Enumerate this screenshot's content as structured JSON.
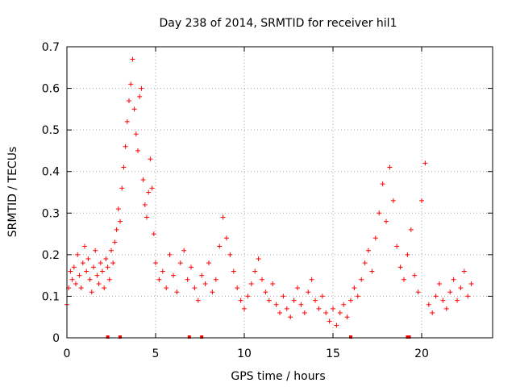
{
  "chart_data": {
    "type": "scatter",
    "title": "Day 238 of 2014, SRMTID for receiver hil1",
    "xlabel": "GPS time / hours",
    "ylabel": "SRMTID / TECUs",
    "xlim": [
      0,
      24
    ],
    "ylim": [
      0,
      0.7
    ],
    "xticks": [
      0,
      5,
      10,
      15,
      20
    ],
    "xtick_labels": [
      "0",
      "5",
      "10",
      "15",
      "20"
    ],
    "yticks": [
      0,
      0.1,
      0.2,
      0.3,
      0.4,
      0.5,
      0.6,
      0.7
    ],
    "ytick_labels": [
      "0",
      "0.1",
      "0.2",
      "0.3",
      "0.4",
      "0.5",
      "0.6",
      "0.7"
    ],
    "grid": true,
    "marker": "+",
    "color": "#ff0000",
    "series": [
      {
        "name": "hil1",
        "points": [
          [
            0.0,
            0.08
          ],
          [
            0.1,
            0.12
          ],
          [
            0.2,
            0.16
          ],
          [
            0.3,
            0.14
          ],
          [
            0.4,
            0.17
          ],
          [
            0.5,
            0.13
          ],
          [
            0.6,
            0.2
          ],
          [
            0.7,
            0.15
          ],
          [
            0.8,
            0.12
          ],
          [
            0.9,
            0.18
          ],
          [
            1.0,
            0.22
          ],
          [
            1.1,
            0.16
          ],
          [
            1.2,
            0.19
          ],
          [
            1.3,
            0.14
          ],
          [
            1.4,
            0.11
          ],
          [
            1.5,
            0.17
          ],
          [
            1.6,
            0.21
          ],
          [
            1.7,
            0.15
          ],
          [
            1.8,
            0.13
          ],
          [
            1.9,
            0.18
          ],
          [
            2.0,
            0.16
          ],
          [
            2.1,
            0.12
          ],
          [
            2.2,
            0.19
          ],
          [
            2.3,
            0.17
          ],
          [
            2.4,
            0.14
          ],
          [
            2.5,
            0.21
          ],
          [
            2.6,
            0.18
          ],
          [
            2.7,
            0.23
          ],
          [
            2.8,
            0.26
          ],
          [
            2.9,
            0.31
          ],
          [
            3.0,
            0.28
          ],
          [
            3.1,
            0.36
          ],
          [
            3.2,
            0.41
          ],
          [
            3.3,
            0.46
          ],
          [
            3.4,
            0.52
          ],
          [
            3.5,
            0.57
          ],
          [
            3.6,
            0.61
          ],
          [
            3.7,
            0.67
          ],
          [
            3.8,
            0.55
          ],
          [
            3.9,
            0.49
          ],
          [
            4.0,
            0.45
          ],
          [
            4.1,
            0.58
          ],
          [
            4.2,
            0.6
          ],
          [
            4.3,
            0.38
          ],
          [
            4.4,
            0.32
          ],
          [
            4.5,
            0.29
          ],
          [
            4.6,
            0.35
          ],
          [
            4.7,
            0.43
          ],
          [
            4.8,
            0.36
          ],
          [
            4.9,
            0.25
          ],
          [
            5.0,
            0.18
          ],
          [
            5.2,
            0.14
          ],
          [
            5.4,
            0.16
          ],
          [
            5.6,
            0.12
          ],
          [
            5.8,
            0.2
          ],
          [
            6.0,
            0.15
          ],
          [
            6.2,
            0.11
          ],
          [
            6.4,
            0.18
          ],
          [
            6.6,
            0.21
          ],
          [
            6.8,
            0.14
          ],
          [
            7.0,
            0.17
          ],
          [
            7.2,
            0.12
          ],
          [
            7.4,
            0.09
          ],
          [
            7.6,
            0.15
          ],
          [
            7.8,
            0.13
          ],
          [
            8.0,
            0.18
          ],
          [
            8.2,
            0.11
          ],
          [
            8.4,
            0.14
          ],
          [
            8.6,
            0.22
          ],
          [
            8.8,
            0.29
          ],
          [
            9.0,
            0.24
          ],
          [
            9.2,
            0.2
          ],
          [
            9.4,
            0.16
          ],
          [
            9.6,
            0.12
          ],
          [
            9.8,
            0.09
          ],
          [
            10.0,
            0.07
          ],
          [
            10.2,
            0.1
          ],
          [
            10.4,
            0.13
          ],
          [
            10.6,
            0.16
          ],
          [
            10.8,
            0.19
          ],
          [
            11.0,
            0.14
          ],
          [
            11.2,
            0.11
          ],
          [
            11.4,
            0.09
          ],
          [
            11.6,
            0.13
          ],
          [
            11.8,
            0.08
          ],
          [
            12.0,
            0.06
          ],
          [
            12.2,
            0.1
          ],
          [
            12.4,
            0.07
          ],
          [
            12.6,
            0.05
          ],
          [
            12.8,
            0.09
          ],
          [
            13.0,
            0.12
          ],
          [
            13.2,
            0.08
          ],
          [
            13.4,
            0.06
          ],
          [
            13.6,
            0.11
          ],
          [
            13.8,
            0.14
          ],
          [
            14.0,
            0.09
          ],
          [
            14.2,
            0.07
          ],
          [
            14.4,
            0.1
          ],
          [
            14.6,
            0.06
          ],
          [
            14.8,
            0.04
          ],
          [
            15.0,
            0.07
          ],
          [
            15.2,
            0.03
          ],
          [
            15.4,
            0.06
          ],
          [
            15.6,
            0.08
          ],
          [
            15.8,
            0.05
          ],
          [
            16.0,
            0.09
          ],
          [
            16.2,
            0.12
          ],
          [
            16.4,
            0.1
          ],
          [
            16.6,
            0.14
          ],
          [
            16.8,
            0.18
          ],
          [
            17.0,
            0.21
          ],
          [
            17.2,
            0.16
          ],
          [
            17.4,
            0.24
          ],
          [
            17.6,
            0.3
          ],
          [
            17.8,
            0.37
          ],
          [
            18.0,
            0.28
          ],
          [
            18.2,
            0.41
          ],
          [
            18.4,
            0.33
          ],
          [
            18.6,
            0.22
          ],
          [
            18.8,
            0.17
          ],
          [
            19.0,
            0.14
          ],
          [
            19.2,
            0.2
          ],
          [
            19.4,
            0.26
          ],
          [
            19.6,
            0.15
          ],
          [
            19.8,
            0.11
          ],
          [
            20.0,
            0.33
          ],
          [
            20.2,
            0.42
          ],
          [
            20.4,
            0.08
          ],
          [
            20.6,
            0.06
          ],
          [
            20.8,
            0.1
          ],
          [
            21.0,
            0.13
          ],
          [
            21.2,
            0.09
          ],
          [
            21.4,
            0.07
          ],
          [
            21.6,
            0.11
          ],
          [
            21.8,
            0.14
          ],
          [
            22.0,
            0.09
          ],
          [
            22.2,
            0.12
          ],
          [
            22.4,
            0.16
          ],
          [
            22.6,
            0.1
          ],
          [
            22.8,
            0.13
          ]
        ]
      }
    ],
    "axis_marks": [
      2.3,
      3.0,
      6.9,
      7.6,
      16.0,
      19.2,
      19.3
    ]
  }
}
